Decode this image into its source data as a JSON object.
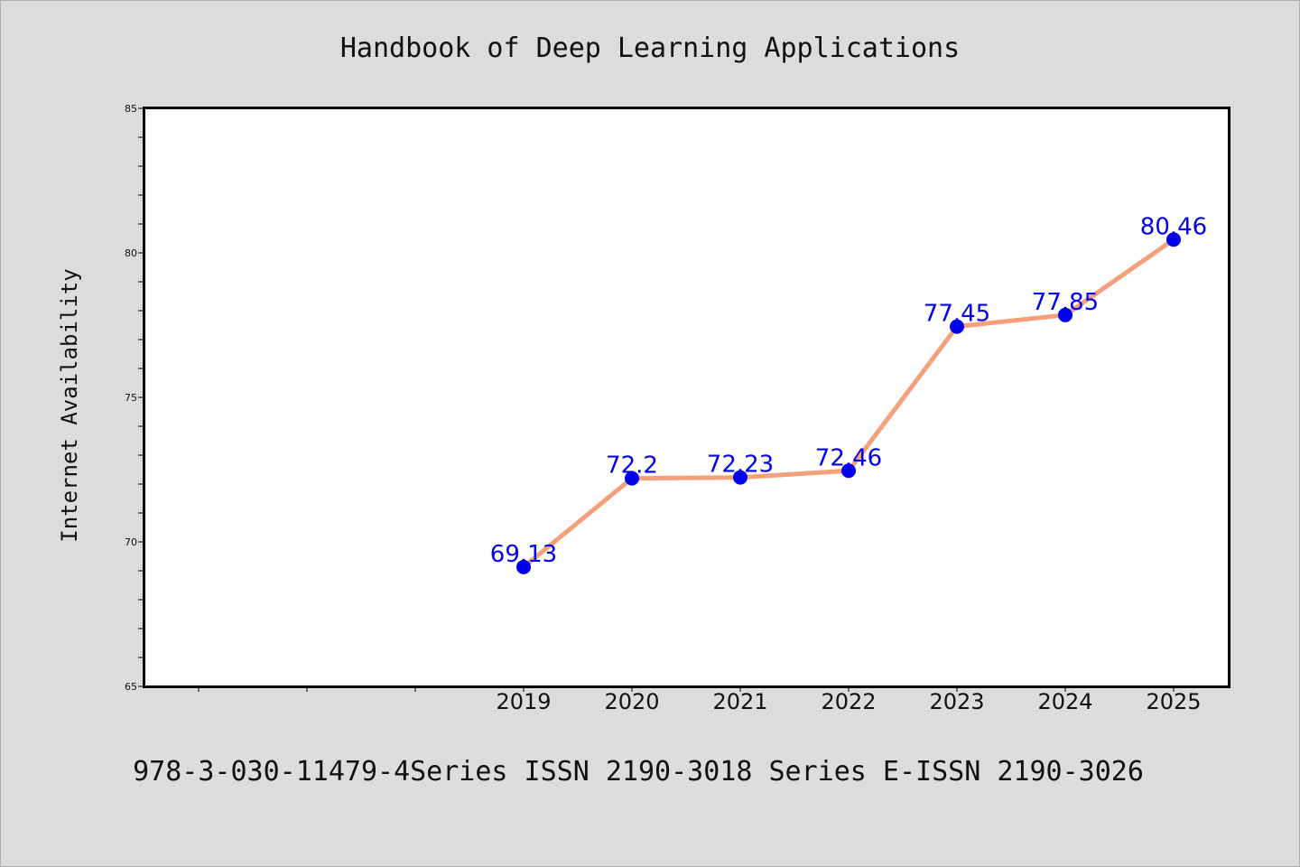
{
  "page": {
    "background_color": "#dcdcdc",
    "footer": "978-3-030-11479-4Series ISSN 2190-3018 Series E-ISSN 2190-3026"
  },
  "chart_data": {
    "type": "line",
    "title": "Handbook of Deep Learning Applications",
    "xlabel": "",
    "ylabel": "Internet Availability",
    "x": [
      "2019",
      "2020",
      "2021",
      "2022",
      "2023",
      "2024",
      "2025"
    ],
    "y_tick_labels": [
      "65",
      "70",
      "75",
      "80",
      "85"
    ],
    "series": [
      {
        "values": [
          69.13,
          72.2,
          72.23,
          72.46,
          77.45,
          77.85,
          80.46
        ]
      }
    ],
    "data_labels": [
      "69.13",
      "72.2",
      "72.23",
      "72.46",
      "77.45",
      "77.85",
      "80.46"
    ],
    "ylim": [
      65,
      85
    ],
    "x_slots": 10,
    "grid": false,
    "line_color": "#f4a07a",
    "marker_color": "#0000ee",
    "label_color": "#0000ee",
    "plot_background": "#ffffff"
  }
}
